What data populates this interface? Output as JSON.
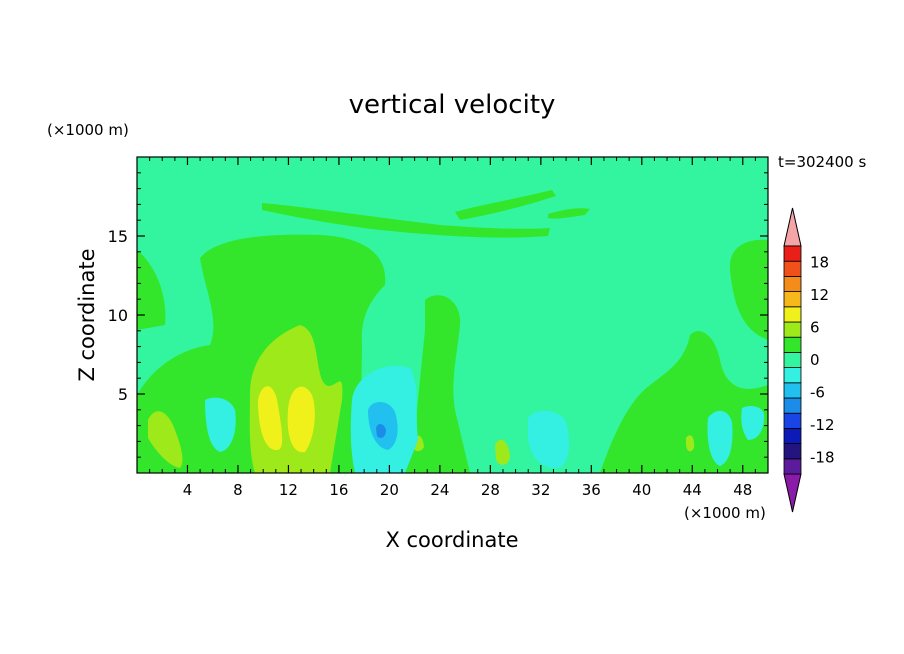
{
  "chart_data": {
    "type": "heatmap",
    "title": "vertical velocity",
    "xlabel": "X coordinate",
    "ylabel": "Z coordinate",
    "x_unit": "(×1000 m)",
    "y_unit": "(×1000 m)",
    "time_label": "t=302400 s",
    "xlim": [
      0,
      50
    ],
    "ylim": [
      0,
      20
    ],
    "x_ticks": [
      4,
      8,
      12,
      16,
      20,
      24,
      28,
      32,
      36,
      40,
      44,
      48
    ],
    "y_ticks": [
      5,
      10,
      15
    ],
    "colorbar": {
      "levels": [
        -21,
        -18,
        -15,
        -12,
        -9,
        -6,
        -3,
        0,
        3,
        6,
        9,
        12,
        15,
        18,
        21
      ],
      "colors": [
        "#5c1a9c",
        "#23147f",
        "#0c1bb8",
        "#1a45e6",
        "#1b8ce8",
        "#22c0ee",
        "#33f0e3",
        "#33f59f",
        "#33e62c",
        "#9de91a",
        "#f0f01a",
        "#f6b81a",
        "#f48c1a",
        "#f0501a",
        "#ea1f1a"
      ],
      "under_color": "#8a1aa8",
      "over_color": "#f5a5a8",
      "tick_labels": [
        18,
        12,
        6,
        0,
        -6,
        -12,
        -18
      ]
    },
    "features": [
      {
        "type": "positive",
        "x": 12.0,
        "z": 3.0,
        "peak": 9
      },
      {
        "type": "positive",
        "x": 2.5,
        "z": 2.0,
        "peak": 6
      },
      {
        "type": "positive",
        "x": 15.5,
        "z": 5.5,
        "peak": 6
      },
      {
        "type": "negative",
        "x": 19.5,
        "z": 2.5,
        "peak": -9
      },
      {
        "type": "negative",
        "x": 33.0,
        "z": 2.5,
        "peak": -3
      },
      {
        "type": "negative",
        "x": 46.0,
        "z": 2.5,
        "peak": -3
      },
      {
        "type": "weak_updraft",
        "x": 14.0,
        "z": 9.0,
        "peak": 1.5
      }
    ]
  }
}
